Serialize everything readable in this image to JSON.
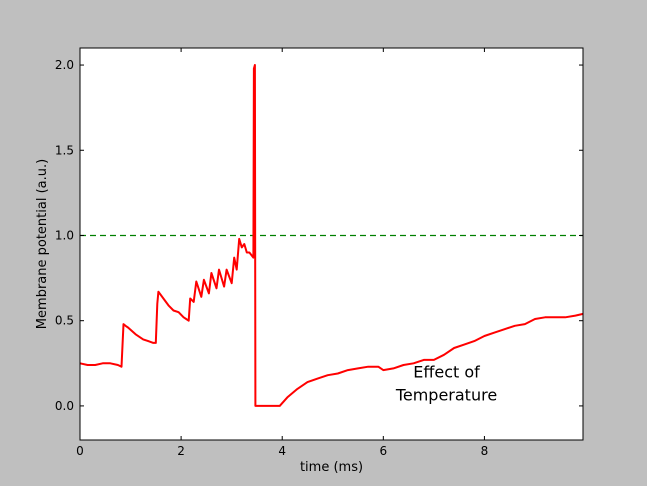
{
  "chart_data": {
    "type": "line",
    "title": "",
    "xlabel": "time (ms)",
    "ylabel": "Membrane potential (a.u.)",
    "xlim": [
      0,
      9.95
    ],
    "ylim": [
      -0.2,
      2.1
    ],
    "xticks": [
      0,
      2,
      4,
      6,
      8
    ],
    "yticks": [
      0.0,
      0.5,
      1.0,
      1.5,
      2.0
    ],
    "xtick_labels": [
      "0",
      "2",
      "4",
      "6",
      "8"
    ],
    "ytick_labels": [
      "0.0",
      "0.5",
      "1.0",
      "1.5",
      "2.0"
    ],
    "grid": false,
    "legend": "none",
    "threshold": {
      "y": 1.0,
      "color": "#008000",
      "style": "dashed"
    },
    "annotation": {
      "lines": [
        "Effect of",
        "Temperature"
      ],
      "x": 7.25,
      "y": 0.1
    },
    "series": [
      {
        "color": "#ff0000",
        "x": [
          0,
          0.15,
          0.3,
          0.45,
          0.6,
          0.75,
          0.82,
          0.86,
          0.9,
          0.95,
          1.1,
          1.25,
          1.35,
          1.45,
          1.5,
          1.53,
          1.55,
          1.65,
          1.75,
          1.85,
          1.95,
          2.05,
          2.1,
          2.15,
          2.18,
          2.25,
          2.3,
          2.4,
          2.45,
          2.55,
          2.6,
          2.7,
          2.75,
          2.85,
          2.9,
          3.0,
          3.05,
          3.1,
          3.15,
          3.2,
          3.25,
          3.3,
          3.35,
          3.43,
          3.44,
          3.46,
          3.47,
          3.47,
          3.5,
          3.6,
          3.8,
          3.95,
          4.1,
          4.3,
          4.5,
          4.7,
          4.9,
          5.1,
          5.3,
          5.5,
          5.7,
          5.9,
          6.0,
          6.2,
          6.4,
          6.6,
          6.8,
          7.0,
          7.2,
          7.4,
          7.6,
          7.8,
          8.0,
          8.2,
          8.4,
          8.6,
          8.8,
          9.0,
          9.2,
          9.4,
          9.6,
          9.8,
          9.95
        ],
        "y": [
          0.25,
          0.24,
          0.24,
          0.25,
          0.25,
          0.24,
          0.23,
          0.48,
          0.47,
          0.46,
          0.42,
          0.39,
          0.38,
          0.37,
          0.37,
          0.6,
          0.67,
          0.63,
          0.59,
          0.56,
          0.55,
          0.52,
          0.51,
          0.5,
          0.63,
          0.61,
          0.73,
          0.64,
          0.74,
          0.66,
          0.78,
          0.69,
          0.8,
          0.7,
          0.8,
          0.72,
          0.87,
          0.8,
          0.98,
          0.93,
          0.95,
          0.9,
          0.9,
          0.87,
          1.98,
          2.0,
          0.0,
          0.0,
          0.0,
          0.0,
          0.0,
          0.0,
          0.05,
          0.1,
          0.14,
          0.16,
          0.18,
          0.19,
          0.21,
          0.22,
          0.23,
          0.23,
          0.21,
          0.22,
          0.24,
          0.25,
          0.27,
          0.27,
          0.3,
          0.34,
          0.36,
          0.38,
          0.41,
          0.43,
          0.45,
          0.47,
          0.48,
          0.51,
          0.52,
          0.52,
          0.52,
          0.53,
          0.54
        ]
      }
    ]
  }
}
